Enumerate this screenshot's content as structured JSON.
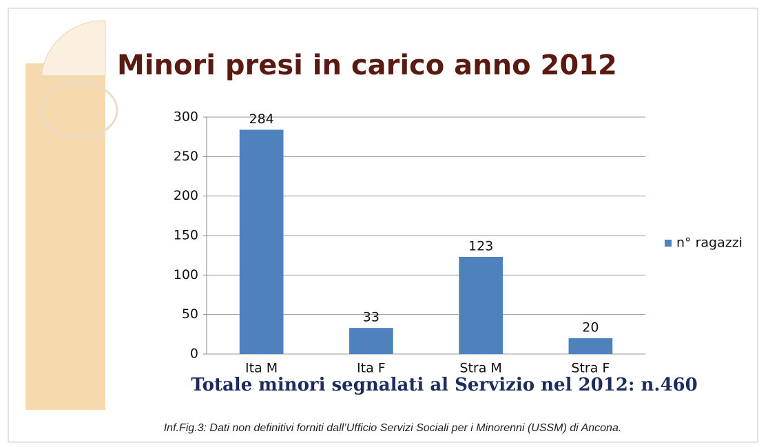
{
  "chart_data": {
    "type": "bar",
    "title": "Minori presi in carico anno 2012",
    "subtitle": "Totale minori segnalati al Servizio nel 2012: n.460",
    "caption": "Inf.Fig.3: Dati non definitivi forniti dall’Ufficio Servizi Sociali per i Minorenni (USSM) di Ancona.",
    "categories": [
      "Ita M",
      "Ita F",
      "Stra M",
      "Stra F"
    ],
    "series": [
      {
        "name": "n° ragazzi",
        "color": "#4f81bd",
        "values": [
          284,
          33,
          123,
          20
        ]
      }
    ],
    "ylim": [
      0,
      300
    ],
    "yticks": [
      0,
      50,
      100,
      150,
      200,
      250,
      300
    ],
    "grid": true,
    "legend": "right"
  }
}
